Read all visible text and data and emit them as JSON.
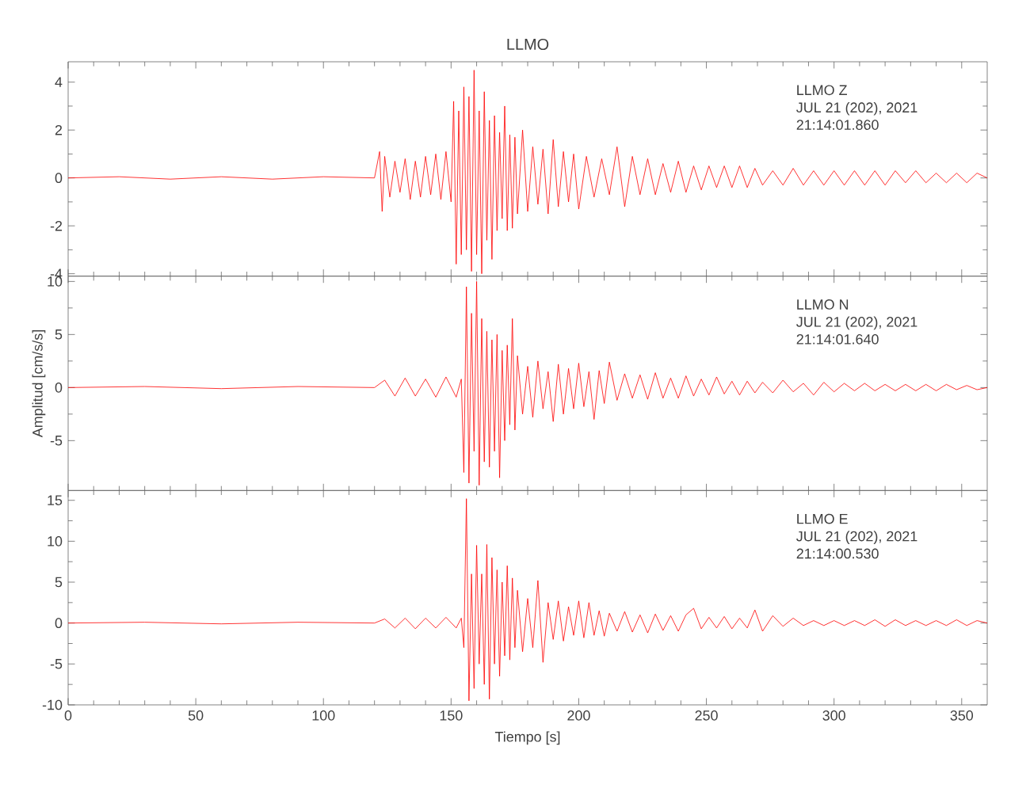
{
  "chart_data": [
    {
      "type": "line",
      "title": "LLMO",
      "xlim": [
        0,
        360
      ],
      "xticks": [
        0,
        50,
        100,
        150,
        200,
        250,
        300,
        350
      ],
      "ylim": [
        -4.1,
        4.85
      ],
      "yticks": [
        -4,
        -2,
        0,
        2,
        4
      ],
      "tick_labels": "y",
      "grid": false,
      "marker": "none",
      "line_style": "solid",
      "annotations": [
        "LLMO   Z",
        "JUL 21 (202), 2021",
        "21:14:01.860"
      ],
      "series": [
        {
          "color": "#ff0000",
          "x": [
            0,
            20,
            40,
            60,
            80,
            100,
            120,
            122,
            123,
            124,
            126,
            128,
            130,
            132,
            134,
            136,
            138,
            140,
            142,
            144,
            146,
            148,
            150,
            151,
            152,
            153,
            154,
            155,
            156,
            157,
            158,
            159,
            160,
            161,
            162,
            163,
            164,
            165,
            166,
            167,
            168,
            169,
            170,
            171,
            172,
            173,
            174,
            175,
            176,
            178,
            180,
            182,
            184,
            186,
            188,
            190,
            192,
            194,
            196,
            198,
            200,
            203,
            206,
            209,
            212,
            215,
            218,
            221,
            224,
            227,
            230,
            233,
            236,
            239,
            242,
            245,
            248,
            251,
            254,
            257,
            260,
            263,
            266,
            269,
            272,
            276,
            280,
            284,
            288,
            292,
            296,
            300,
            304,
            308,
            312,
            316,
            320,
            324,
            328,
            332,
            336,
            340,
            344,
            348,
            352,
            356,
            360
          ],
          "values": [
            0,
            0.05,
            -0.05,
            0.05,
            -0.05,
            0.05,
            0,
            1.1,
            -1.4,
            0.9,
            -0.8,
            0.7,
            -0.6,
            0.8,
            -0.9,
            0.7,
            -0.8,
            0.9,
            -0.7,
            1.0,
            -0.9,
            1.1,
            -1.0,
            3.2,
            -3.6,
            2.8,
            -3.2,
            3.8,
            -3.0,
            3.4,
            -3.9,
            4.5,
            -3.2,
            2.8,
            -4.0,
            3.6,
            -2.6,
            2.4,
            -3.4,
            2.6,
            -2.2,
            1.9,
            -1.7,
            3.0,
            -2.2,
            1.8,
            -2.1,
            1.7,
            -1.5,
            2.0,
            -1.4,
            1.3,
            -1.1,
            1.2,
            -1.5,
            1.6,
            -1.2,
            1.1,
            -1.0,
            1.0,
            -1.3,
            0.9,
            -0.8,
            0.8,
            -0.7,
            1.3,
            -1.2,
            0.9,
            -0.7,
            0.8,
            -0.7,
            0.6,
            -0.6,
            0.7,
            -0.6,
            0.5,
            -0.5,
            0.5,
            -0.4,
            0.5,
            -0.4,
            0.5,
            -0.4,
            0.4,
            -0.3,
            0.3,
            -0.3,
            0.4,
            -0.3,
            0.3,
            -0.3,
            0.3,
            -0.3,
            0.3,
            -0.3,
            0.3,
            -0.3,
            0.3,
            -0.2,
            0.3,
            -0.2,
            0.2,
            -0.2,
            0.2,
            -0.2,
            0.2,
            0
          ]
        }
      ]
    },
    {
      "type": "line",
      "ylabel": "Amplitud [cm/s/s]",
      "xlim": [
        0,
        360
      ],
      "xticks": [
        0,
        50,
        100,
        150,
        200,
        250,
        300,
        350
      ],
      "ylim": [
        -9.7,
        10.5
      ],
      "yticks": [
        -5,
        0,
        5,
        10
      ],
      "tick_labels": "y",
      "grid": false,
      "marker": "none",
      "line_style": "solid",
      "annotations": [
        "LLMO   N",
        "JUL 21 (202), 2021",
        "21:14:01.640"
      ],
      "series": [
        {
          "color": "#ff0000",
          "x": [
            0,
            30,
            60,
            90,
            120,
            124,
            128,
            132,
            136,
            140,
            144,
            148,
            152,
            154,
            155,
            156,
            157,
            158,
            159,
            160,
            161,
            162,
            163,
            164,
            165,
            166,
            167,
            168,
            169,
            170,
            171,
            172,
            173,
            174,
            175,
            176,
            178,
            180,
            182,
            184,
            186,
            188,
            190,
            192,
            194,
            196,
            198,
            200,
            202,
            204,
            206,
            208,
            210,
            212,
            215,
            218,
            221,
            224,
            227,
            230,
            233,
            236,
            239,
            242,
            245,
            248,
            251,
            254,
            257,
            260,
            263,
            266,
            269,
            272,
            276,
            280,
            284,
            288,
            292,
            296,
            300,
            304,
            308,
            312,
            316,
            320,
            324,
            328,
            332,
            336,
            340,
            344,
            348,
            352,
            356,
            360
          ],
          "values": [
            0,
            0.1,
            -0.1,
            0.1,
            0,
            0.7,
            -0.8,
            0.9,
            -0.8,
            0.8,
            -0.9,
            1.0,
            -0.9,
            0.8,
            -8.0,
            9.5,
            -9.0,
            7.0,
            -6.0,
            10.0,
            -9.2,
            6.5,
            -7.0,
            5.3,
            -7.5,
            4.5,
            -6.0,
            5.0,
            -8.5,
            3.5,
            -5.0,
            4.0,
            -3.5,
            6.5,
            -4.0,
            3.0,
            -2.5,
            2.0,
            -2.8,
            2.5,
            -2.0,
            1.5,
            -3.2,
            2.2,
            -2.5,
            1.8,
            -2.0,
            2.3,
            -1.8,
            1.5,
            -3.0,
            1.6,
            -1.5,
            2.4,
            -1.2,
            1.3,
            -1.0,
            1.2,
            -1.1,
            1.4,
            -1.0,
            0.9,
            -1.0,
            1.1,
            -0.8,
            0.8,
            -0.7,
            1.0,
            -0.6,
            0.6,
            -0.7,
            0.6,
            -0.5,
            0.5,
            -0.5,
            0.7,
            -0.4,
            0.4,
            -0.7,
            0.5,
            -0.4,
            0.4,
            -0.3,
            0.4,
            -0.3,
            0.3,
            -0.3,
            0.3,
            -0.3,
            0.3,
            -0.3,
            0.3,
            -0.2,
            0.2,
            -0.2,
            0
          ]
        }
      ]
    },
    {
      "type": "line",
      "xlabel": "Tiempo [s]",
      "xlim": [
        0,
        360
      ],
      "xticks": [
        0,
        50,
        100,
        150,
        200,
        250,
        300,
        350
      ],
      "ylim": [
        -10,
        16.2
      ],
      "yticks": [
        -10,
        -5,
        0,
        5,
        10,
        15
      ],
      "grid": false,
      "marker": "none",
      "line_style": "solid",
      "annotations": [
        "LLMO   E",
        "JUL 21 (202), 2021",
        "21:14:00.530"
      ],
      "series": [
        {
          "color": "#ff0000",
          "x": [
            0,
            30,
            60,
            90,
            120,
            124,
            128,
            132,
            136,
            140,
            144,
            148,
            152,
            154,
            155,
            156,
            157,
            158,
            159,
            160,
            161,
            162,
            163,
            164,
            165,
            166,
            167,
            168,
            169,
            170,
            171,
            172,
            173,
            174,
            175,
            176,
            178,
            180,
            182,
            184,
            186,
            188,
            190,
            192,
            194,
            196,
            198,
            200,
            202,
            204,
            206,
            208,
            210,
            212,
            215,
            218,
            221,
            224,
            227,
            230,
            233,
            236,
            239,
            242,
            245,
            248,
            251,
            254,
            257,
            260,
            263,
            266,
            269,
            272,
            276,
            280,
            284,
            288,
            292,
            296,
            300,
            304,
            308,
            312,
            316,
            320,
            324,
            328,
            332,
            336,
            340,
            344,
            348,
            352,
            356,
            360
          ],
          "values": [
            0,
            0.1,
            -0.1,
            0.1,
            0,
            0.5,
            -0.6,
            0.6,
            -0.7,
            0.6,
            -0.6,
            0.7,
            -0.6,
            0.6,
            -3.0,
            15.2,
            -9.5,
            6.0,
            -8.0,
            9.5,
            -5.0,
            6.0,
            -7.5,
            9.6,
            -9.3,
            8.0,
            -5.0,
            6.5,
            -6.5,
            5.0,
            -4.0,
            7.0,
            -4.5,
            5.5,
            -3.0,
            4.0,
            -3.5,
            3.0,
            -3.0,
            5.2,
            -4.8,
            2.5,
            -2.0,
            2.7,
            -2.2,
            2.0,
            -1.5,
            2.7,
            -1.8,
            2.5,
            -1.5,
            1.5,
            -1.6,
            1.2,
            -1.0,
            1.4,
            -1.1,
            1.0,
            -1.2,
            1.1,
            -0.9,
            0.9,
            -1.0,
            1.0,
            1.8,
            -0.7,
            0.7,
            -0.6,
            0.8,
            -0.7,
            0.6,
            -0.6,
            1.6,
            -1.0,
            0.9,
            -0.4,
            0.6,
            -0.3,
            0.3,
            -0.3,
            0.3,
            -0.3,
            0.3,
            -0.3,
            0.4,
            -0.4,
            0.4,
            -0.3,
            0.3,
            -0.3,
            0.3,
            -0.3,
            0.4,
            -0.3,
            0.3,
            0
          ]
        }
      ]
    }
  ]
}
